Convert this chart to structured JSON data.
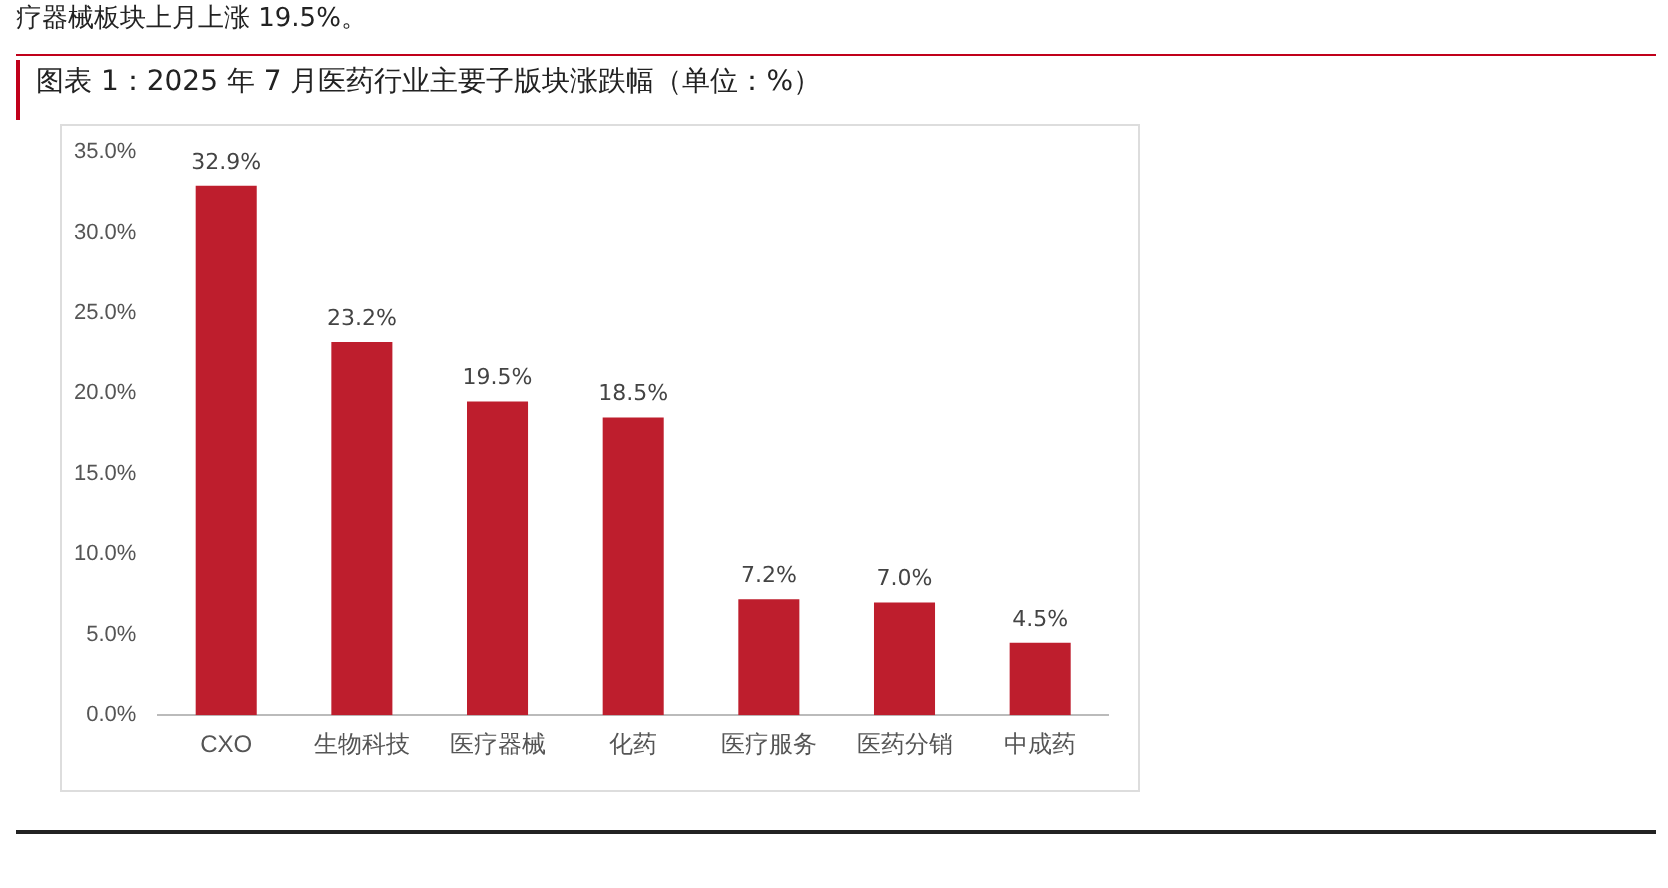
{
  "chart_data": {
    "type": "bar",
    "title": "图表 1：2025 年 7 月医药行业主要子版块涨跌幅（单位：%）",
    "annotations": [
      "疗器械板块上月上涨 19.5%。"
    ],
    "categories": [
      "CXO",
      "生物科技",
      "医疗器械",
      "化药",
      "医疗服务",
      "医药分销",
      "中成药"
    ],
    "values": [
      32.9,
      23.2,
      19.5,
      18.5,
      7.2,
      7.0,
      4.5
    ],
    "value_labels": [
      "32.9%",
      "23.2%",
      "19.5%",
      "18.5%",
      "7.2%",
      "7.0%",
      "4.5%"
    ],
    "color": "#be1e2d",
    "ylim": [
      0,
      35
    ],
    "yticks": [
      {
        "value": 0,
        "label": "0.0%"
      },
      {
        "value": 5,
        "label": "5.0%"
      },
      {
        "value": 10,
        "label": "10.0%"
      },
      {
        "value": 15,
        "label": "15.0%"
      },
      {
        "value": 20,
        "label": "20.0%"
      },
      {
        "value": 25,
        "label": "25.0%"
      },
      {
        "value": 30,
        "label": "30.0%"
      },
      {
        "value": 35,
        "label": "35.0%"
      }
    ],
    "grid": false,
    "legend": false
  }
}
